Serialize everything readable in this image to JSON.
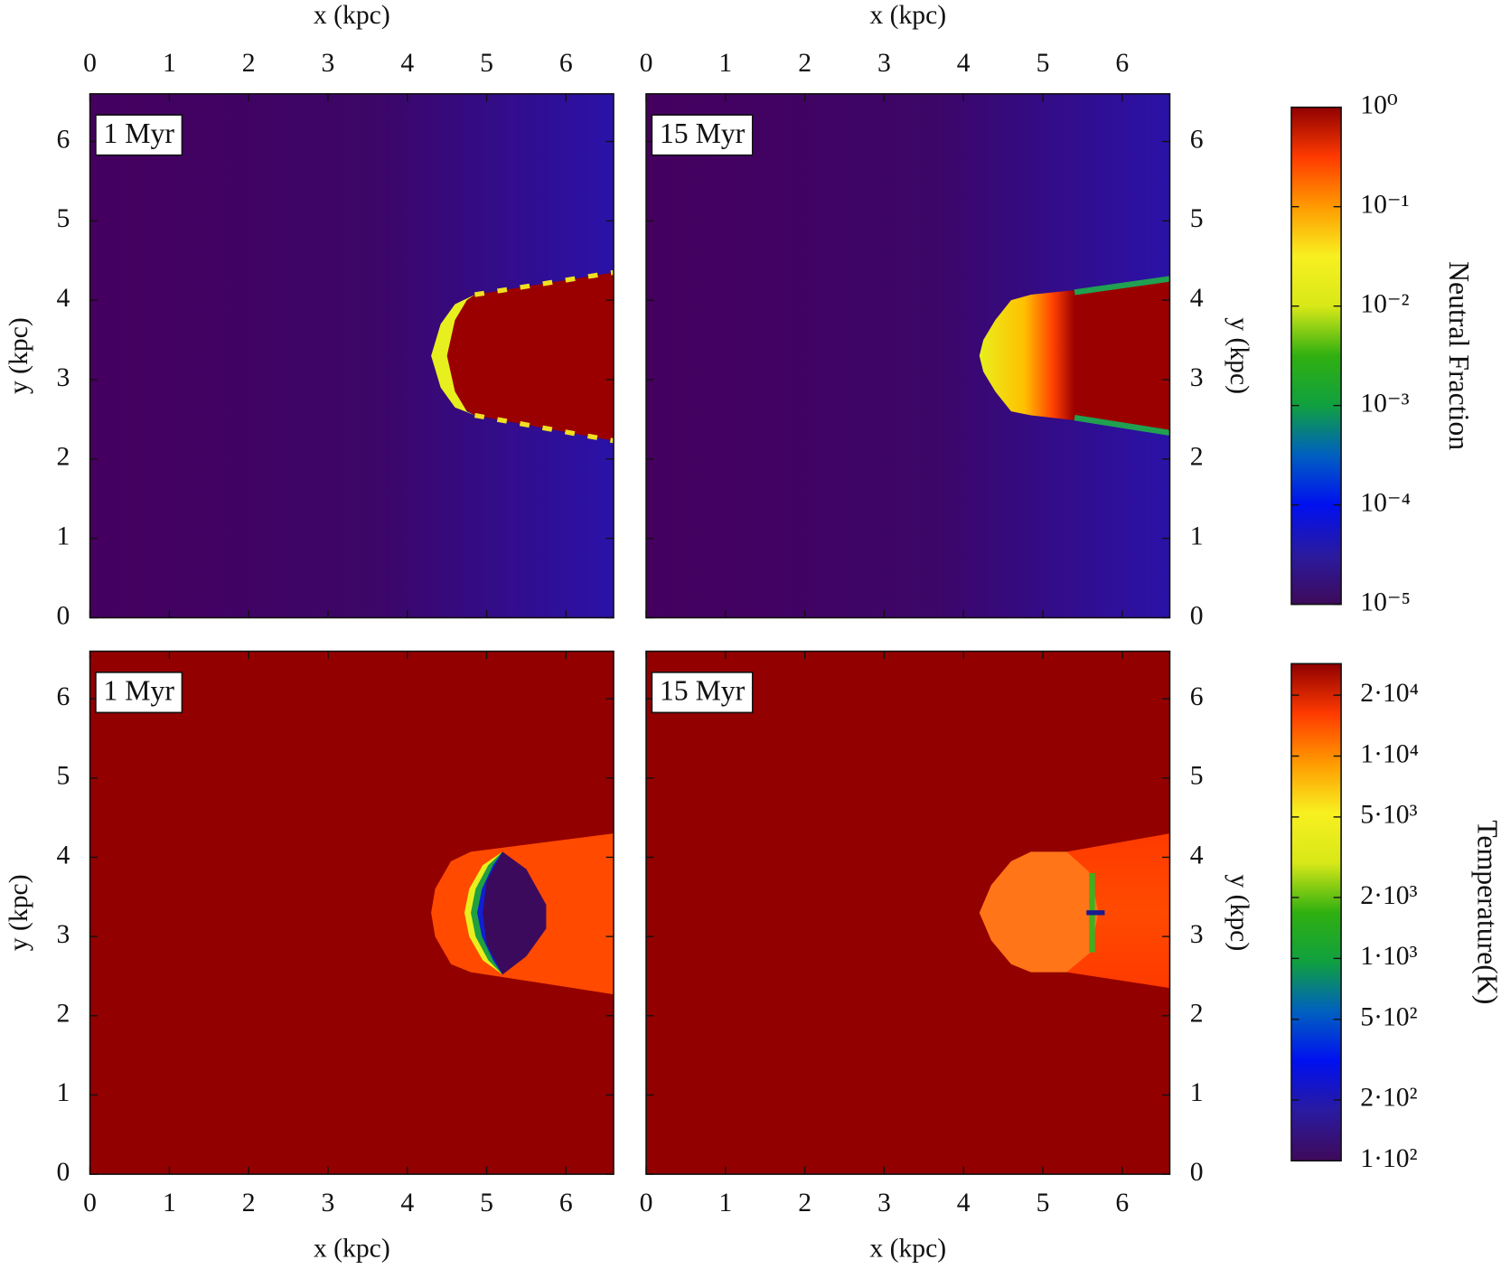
{
  "chart_data": [
    {
      "type": "heatmap",
      "annotation": "1 Myr",
      "xlabel": "x (kpc)",
      "ylabel": "y (kpc)",
      "xlim": [
        0,
        6.6
      ],
      "ylim": [
        0,
        6.6
      ],
      "xticks": [
        0,
        1,
        2,
        3,
        4,
        5,
        6
      ],
      "yticks": [
        0,
        1,
        2,
        3,
        4,
        5,
        6
      ]
    },
    {
      "type": "heatmap",
      "annotation": "15 Myr",
      "xlabel": "x (kpc)",
      "ylabel": "y (kpc)",
      "xlim": [
        0,
        6.6
      ],
      "ylim": [
        0,
        6.6
      ],
      "xticks": [
        0,
        1,
        2,
        3,
        4,
        5,
        6
      ],
      "yticks": [
        0,
        1,
        2,
        3,
        4,
        5,
        6
      ]
    },
    {
      "type": "heatmap",
      "annotation": "1 Myr",
      "xlabel": "x (kpc)",
      "ylabel": "y (kpc)",
      "xlim": [
        0,
        6.6
      ],
      "ylim": [
        0,
        6.6
      ],
      "xticks": [
        0,
        1,
        2,
        3,
        4,
        5,
        6
      ],
      "yticks": [
        0,
        1,
        2,
        3,
        4,
        5,
        6
      ]
    },
    {
      "type": "heatmap",
      "annotation": "15 Myr",
      "xlabel": "x (kpc)",
      "ylabel": "y (kpc)",
      "xlim": [
        0,
        6.6
      ],
      "ylim": [
        0,
        6.6
      ],
      "xticks": [
        0,
        1,
        2,
        3,
        4,
        5,
        6
      ],
      "yticks": [
        0,
        1,
        2,
        3,
        4,
        5,
        6
      ]
    },
    {
      "type": "colorbar",
      "label": "Neutral Fraction",
      "log": true,
      "clim": [
        1e-05,
        1
      ],
      "colormap": [
        "#3e0a5a",
        "#2a1aa0",
        "#0010f0",
        "#0060c0",
        "#10a040",
        "#30b010",
        "#d8e818",
        "#f8f020",
        "#ff9a00",
        "#ff3a00",
        "#900000"
      ],
      "ticks": [
        {
          "value": 1,
          "label": "10⁰"
        },
        {
          "value": 0.1,
          "label": "10⁻¹"
        },
        {
          "value": 0.01,
          "label": "10⁻²"
        },
        {
          "value": 0.001,
          "label": "10⁻³"
        },
        {
          "value": 0.0001,
          "label": "10⁻⁴"
        },
        {
          "value": 1e-05,
          "label": "10⁻⁵"
        }
      ]
    },
    {
      "type": "colorbar",
      "label": "Temperature(K)",
      "log": true,
      "clim": [
        100,
        28600
      ],
      "colormap": [
        "#3e0a5a",
        "#2a1aa0",
        "#0010f0",
        "#0060c0",
        "#10a040",
        "#30b010",
        "#d8e818",
        "#f8f020",
        "#ff9a00",
        "#ff3a00",
        "#900000"
      ],
      "ticks": [
        {
          "value": 20000,
          "label": "2·10⁴"
        },
        {
          "value": 10000,
          "label": "1·10⁴"
        },
        {
          "value": 5000,
          "label": "5·10³"
        },
        {
          "value": 2000,
          "label": "2·10³"
        },
        {
          "value": 1000,
          "label": "1·10³"
        },
        {
          "value": 500,
          "label": "5·10²"
        },
        {
          "value": 200,
          "label": "2·10²"
        },
        {
          "value": 100,
          "label": "1·10²"
        }
      ]
    }
  ]
}
